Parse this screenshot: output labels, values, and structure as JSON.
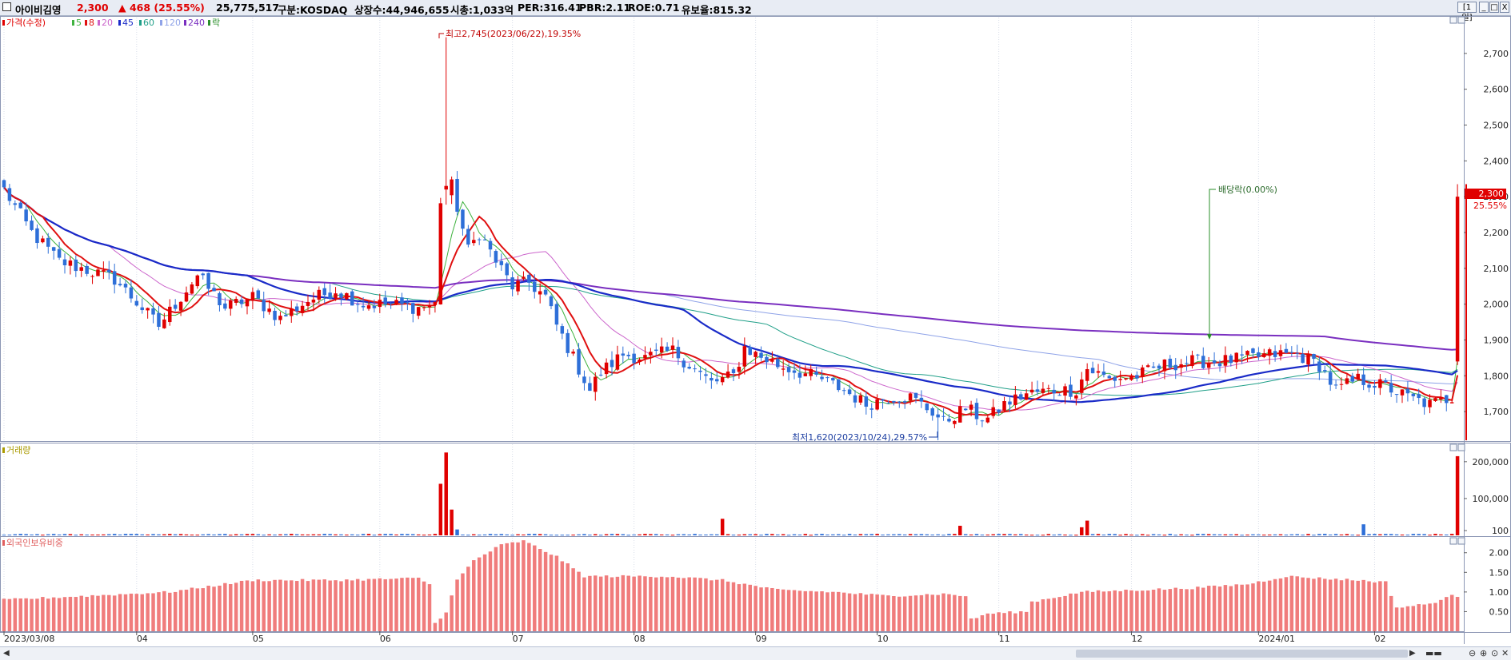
{
  "header": {
    "stock_name": "아이비김영",
    "price": "2,300",
    "change": "▲ 468 (25.55%)",
    "volume": "25,775,517",
    "market": "구분:KOSDAQ",
    "shares": "상장수:44,946,655",
    "market_cap": "시총:1,033억",
    "per": "PER:316.41",
    "pbr": "PBR:2.11",
    "roe": "ROE:0.71",
    "retention": "유보율:815.32",
    "period_button": "[1일]",
    "win_min": "_",
    "win_max": "□",
    "win_close": "X"
  },
  "legend": {
    "price_label": "가격(수정)",
    "ma": [
      "5",
      "8",
      "20",
      "45",
      "60",
      "120",
      "240"
    ],
    "ex_div": "락",
    "volume_label": "거래량",
    "foreign_label": "외국인보유비중"
  },
  "colors": {
    "up": "#e00000",
    "down": "#2e6fd8",
    "ma5": "#3fb23f",
    "ma8": "#e01010",
    "ma20": "#cc66cc",
    "ma45": "#1a2bc8",
    "ma60": "#1f9f88",
    "ma120": "#8fa3e8",
    "ma240": "#7a2fc0",
    "foreign": "#f07c7c"
  },
  "annotations": {
    "high": "최고2,745(2023/06/22),19.35%",
    "low": "최저1,620(2023/10/24),29.57%",
    "ex_dividend": "배당락(0.00%)",
    "last_price": "2,300",
    "last_pct": "25.55%"
  },
  "chart_data": [
    {
      "type": "candlestick",
      "name": "price",
      "ylim": [
        1620,
        2800
      ],
      "y_ticks": [
        "1,700",
        "1,800",
        "1,900",
        "2,000",
        "2,100",
        "2,200",
        "2,300",
        "2,400",
        "2,500",
        "2,600",
        "2,700"
      ],
      "x_ticks": [
        "2023/03/08",
        "04",
        "05",
        "06",
        "07",
        "08",
        "09",
        "10",
        "11",
        "12",
        "2024/01",
        "02"
      ],
      "x_tick_index": [
        0,
        24,
        45,
        68,
        92,
        114,
        136,
        158,
        180,
        204,
        227,
        248
      ],
      "n": 264,
      "keypoints": [
        [
          0,
          2320
        ],
        [
          5,
          2200
        ],
        [
          10,
          2120
        ],
        [
          20,
          2070
        ],
        [
          28,
          1940
        ],
        [
          35,
          2080
        ],
        [
          40,
          1990
        ],
        [
          45,
          2020
        ],
        [
          50,
          1960
        ],
        [
          55,
          2010
        ],
        [
          60,
          2040
        ],
        [
          65,
          2000
        ],
        [
          70,
          2000
        ],
        [
          75,
          1990
        ],
        [
          78,
          2000
        ],
        [
          79,
          2290
        ],
        [
          81,
          2330
        ],
        [
          84,
          2150
        ],
        [
          86,
          2200
        ],
        [
          89,
          2120
        ],
        [
          92,
          2050
        ],
        [
          95,
          2060
        ],
        [
          98,
          2020
        ],
        [
          100,
          1940
        ],
        [
          103,
          1850
        ],
        [
          106,
          1760
        ],
        [
          108,
          1810
        ],
        [
          112,
          1860
        ],
        [
          116,
          1850
        ],
        [
          121,
          1870
        ],
        [
          124,
          1830
        ],
        [
          128,
          1780
        ],
        [
          132,
          1800
        ],
        [
          134,
          1880
        ],
        [
          136,
          1860
        ],
        [
          140,
          1830
        ],
        [
          144,
          1810
        ],
        [
          148,
          1790
        ],
        [
          152,
          1760
        ],
        [
          156,
          1720
        ],
        [
          160,
          1740
        ],
        [
          164,
          1740
        ],
        [
          168,
          1700
        ],
        [
          170,
          1670
        ],
        [
          172,
          1690
        ],
        [
          174,
          1710
        ],
        [
          176,
          1690
        ],
        [
          178,
          1680
        ],
        [
          181,
          1720
        ],
        [
          185,
          1750
        ],
        [
          190,
          1760
        ],
        [
          194,
          1760
        ],
        [
          196,
          1820
        ],
        [
          200,
          1790
        ],
        [
          205,
          1800
        ],
        [
          210,
          1830
        ],
        [
          215,
          1840
        ],
        [
          220,
          1840
        ],
        [
          225,
          1850
        ],
        [
          230,
          1860
        ],
        [
          234,
          1860
        ],
        [
          238,
          1830
        ],
        [
          241,
          1760
        ],
        [
          245,
          1790
        ],
        [
          250,
          1770
        ],
        [
          254,
          1740
        ],
        [
          258,
          1720
        ],
        [
          262,
          1740
        ],
        [
          263,
          2300
        ]
      ]
    },
    {
      "type": "bar",
      "name": "volume",
      "y_ticks": [
        "100",
        "100,000",
        "200,000"
      ],
      "spikes": [
        [
          79,
          140000
        ],
        [
          80,
          225000
        ],
        [
          81,
          70000
        ],
        [
          82,
          16000
        ],
        [
          130,
          45000
        ],
        [
          173,
          26000
        ],
        [
          195,
          22000
        ],
        [
          196,
          40000
        ],
        [
          246,
          30000
        ],
        [
          263,
          215000
        ]
      ]
    },
    {
      "type": "bar",
      "name": "foreign_ownership",
      "ylim": [
        0,
        2.3
      ],
      "y_ticks": [
        "0.50",
        "1.00",
        "1.50",
        "2.00"
      ],
      "keypoints": [
        [
          0,
          0.8
        ],
        [
          15,
          0.9
        ],
        [
          30,
          1.0
        ],
        [
          45,
          1.3
        ],
        [
          60,
          1.3
        ],
        [
          75,
          1.35
        ],
        [
          77,
          1.2
        ],
        [
          78,
          0.2
        ],
        [
          80,
          0.5
        ],
        [
          82,
          1.3
        ],
        [
          85,
          1.8
        ],
        [
          90,
          2.2
        ],
        [
          94,
          2.3
        ],
        [
          100,
          1.9
        ],
        [
          105,
          1.4
        ],
        [
          110,
          1.4
        ],
        [
          120,
          1.4
        ],
        [
          130,
          1.3
        ],
        [
          134,
          1.2
        ],
        [
          140,
          1.05
        ],
        [
          150,
          1.0
        ],
        [
          160,
          0.9
        ],
        [
          170,
          0.95
        ],
        [
          174,
          0.9
        ],
        [
          175,
          0.3
        ],
        [
          178,
          0.45
        ],
        [
          185,
          0.5
        ],
        [
          186,
          0.75
        ],
        [
          195,
          1.0
        ],
        [
          205,
          1.05
        ],
        [
          215,
          1.1
        ],
        [
          225,
          1.2
        ],
        [
          232,
          1.4
        ],
        [
          238,
          1.35
        ],
        [
          245,
          1.3
        ],
        [
          250,
          1.25
        ],
        [
          252,
          0.6
        ],
        [
          258,
          0.7
        ],
        [
          262,
          0.9
        ],
        [
          263,
          0.9
        ]
      ]
    }
  ]
}
